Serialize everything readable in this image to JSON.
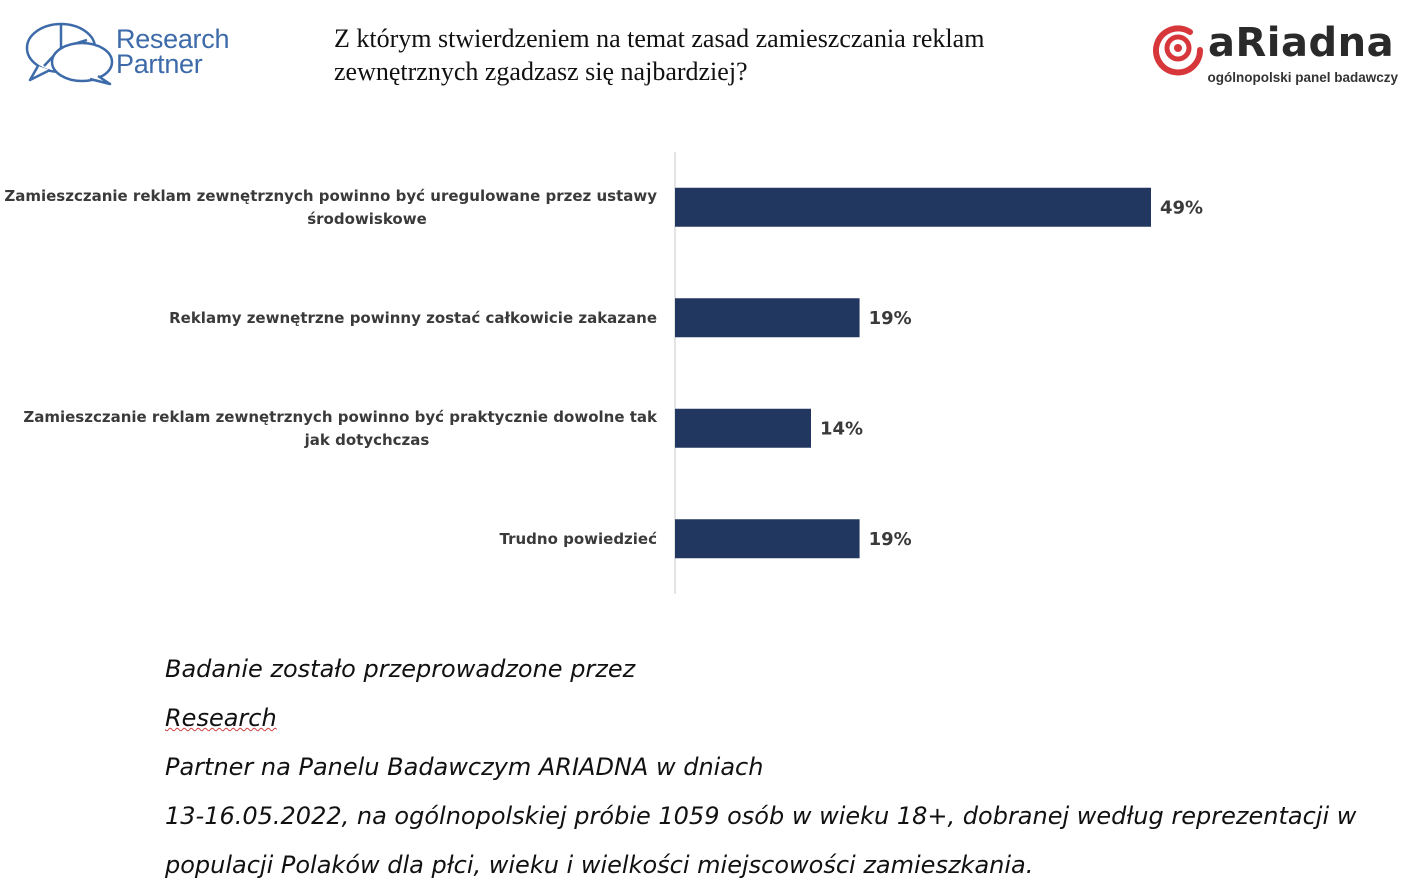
{
  "logo_left": {
    "line1": "Research",
    "line2": "Partner"
  },
  "logo_right": {
    "word": "aRiadna",
    "tagline": "ogólnopolski panel badawczy"
  },
  "title": {
    "line1": "Z którym stwierdzeniem na temat zasad zamieszczania reklam",
    "line2": "zewnętrznych zgadzasz się najbardziej?"
  },
  "colors": {
    "bar": "#22375f",
    "axis": "#c8c8c8",
    "logo_blue": "#3d6aa9",
    "logo_red": "#d7363a"
  },
  "chart_data": {
    "type": "bar",
    "orientation": "horizontal",
    "categories": [
      [
        "Zamieszczanie reklam zewnętrznych powinno być uregulowane przez ustawy",
        "środowiskowe"
      ],
      [
        "Reklamy zewnętrzne powinny zostać całkowicie zakazane"
      ],
      [
        "Zamieszczanie reklam zewnętrznych powinno być praktycznie dowolne tak",
        "jak dotychczas"
      ],
      [
        "Trudno powiedzieć"
      ]
    ],
    "values": [
      49,
      19,
      14,
      19
    ],
    "value_labels": [
      "49%",
      "19%",
      "14%",
      "19%"
    ],
    "xlim": [
      0,
      100
    ],
    "grid": false,
    "legend": "none"
  },
  "footnote": {
    "line1_pre": "Badanie zostało przeprowadzone przez ",
    "line1_underlined": "Research",
    "line1_post": " Partner na Panelu Badawczym ARIADNA w dniach",
    "line2": "13-16.05.2022, na ogólnopolskiej próbie 1059 osób w wieku 18+, dobranej według reprezentacji w",
    "line3": "populacji Polaków dla płci, wieku i wielkości miejscowości zamieszkania."
  }
}
